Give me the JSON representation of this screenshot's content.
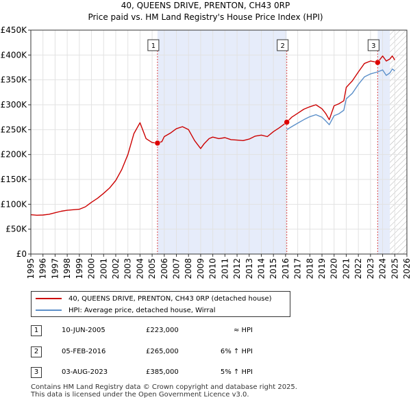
{
  "title": "40, QUEENS DRIVE, PRENTON, CH43 0RP",
  "subtitle": "Price paid vs. HM Land Registry's House Price Index (HPI)",
  "colors": {
    "property": "#cc0000",
    "hpi": "#5b8fc9",
    "shade": "#e6ecfa",
    "marker": "#dd0000"
  },
  "chart_data": {
    "type": "line",
    "title": "40, QUEENS DRIVE, PRENTON, CH43 0RP",
    "subtitle": "Price paid vs. HM Land Registry's House Price Index (HPI)",
    "xlim": [
      1995,
      2026
    ],
    "ylim": [
      0,
      450000
    ],
    "x_ticks": [
      1995,
      1996,
      1997,
      1998,
      1999,
      2000,
      2001,
      2002,
      2003,
      2004,
      2005,
      2006,
      2007,
      2008,
      2009,
      2010,
      2011,
      2012,
      2013,
      2014,
      2015,
      2016,
      2017,
      2018,
      2019,
      2020,
      2021,
      2022,
      2023,
      2024,
      2025,
      2026
    ],
    "y_ticks": [
      {
        "value": 0,
        "label": "£0"
      },
      {
        "value": 50000,
        "label": "£50K"
      },
      {
        "value": 100000,
        "label": "£100K"
      },
      {
        "value": 150000,
        "label": "£150K"
      },
      {
        "value": 200000,
        "label": "£200K"
      },
      {
        "value": 250000,
        "label": "£250K"
      },
      {
        "value": 300000,
        "label": "£300K"
      },
      {
        "value": 350000,
        "label": "£350K"
      },
      {
        "value": 400000,
        "label": "£400K"
      },
      {
        "value": 450000,
        "label": "£450K"
      }
    ],
    "shaded_ranges": [
      [
        2005.44,
        2016.1
      ],
      [
        2023.59,
        2024.6
      ]
    ],
    "hatched_range": [
      2024.6,
      2026
    ],
    "series": [
      {
        "name": "40, QUEENS DRIVE, PRENTON, CH43 0RP (detached house)",
        "x": [
          1995,
          1995.5,
          1996,
          1996.5,
          1997,
          1997.5,
          1998,
          1998.5,
          1999,
          1999.5,
          2000,
          2000.5,
          2001,
          2001.5,
          2002,
          2002.5,
          2003,
          2003.5,
          2004,
          2004.5,
          2005,
          2005.44,
          2005.8,
          2006,
          2006.5,
          2007,
          2007.5,
          2008,
          2008.5,
          2009,
          2009.3,
          2009.7,
          2010,
          2010.5,
          2011,
          2011.5,
          2012,
          2012.5,
          2013,
          2013.5,
          2014,
          2014.5,
          2015,
          2015.5,
          2016.1,
          2016.5,
          2017,
          2017.5,
          2018,
          2018.5,
          2019,
          2019.3,
          2019.6,
          2020,
          2020.4,
          2020.8,
          2021,
          2021.5,
          2022,
          2022.5,
          2023,
          2023.59,
          2024,
          2024.3,
          2024.6,
          2024.8,
          2025
        ],
        "values": [
          79000,
          78000,
          78500,
          80000,
          83000,
          86000,
          88000,
          89000,
          90000,
          95000,
          104000,
          112000,
          122000,
          133000,
          148000,
          170000,
          200000,
          242000,
          264000,
          232000,
          224000,
          223000,
          226000,
          236000,
          243000,
          252000,
          256000,
          250000,
          228000,
          212000,
          222000,
          232000,
          235000,
          232000,
          234000,
          230000,
          229000,
          228000,
          231000,
          237000,
          239000,
          236000,
          246000,
          254000,
          265000,
          275000,
          283000,
          291000,
          296000,
          300000,
          292000,
          283000,
          270000,
          298000,
          302000,
          308000,
          335000,
          348000,
          366000,
          383000,
          388000,
          385000,
          398000,
          388000,
          392000,
          398000,
          390000
        ]
      },
      {
        "name": "HPI: Average price, detached house, Wirral",
        "x": [
          2016.1,
          2016.5,
          2017,
          2017.5,
          2018,
          2018.5,
          2019,
          2019.3,
          2019.6,
          2020,
          2020.4,
          2020.8,
          2021,
          2021.5,
          2022,
          2022.5,
          2023,
          2023.59,
          2024,
          2024.3,
          2024.6,
          2024.8,
          2025
        ],
        "values": [
          250000,
          256000,
          263000,
          270000,
          276000,
          280000,
          275000,
          268000,
          260000,
          278000,
          282000,
          289000,
          312000,
          323000,
          341000,
          356000,
          362000,
          366000,
          370000,
          359000,
          364000,
          372000,
          368000
        ]
      }
    ],
    "annotations": [
      {
        "label": "1",
        "x": 2005.44,
        "value": 223000
      },
      {
        "label": "2",
        "x": 2016.1,
        "value": 265000
      },
      {
        "label": "3",
        "x": 2023.59,
        "value": 385000
      }
    ]
  },
  "legend": {
    "property_label": "40, QUEENS DRIVE, PRENTON, CH43 0RP (detached house)",
    "hpi_label": "HPI: Average price, detached house, Wirral"
  },
  "sales": [
    {
      "num": "1",
      "date": "10-JUN-2005",
      "price": "£223,000",
      "hpi": "≈ HPI"
    },
    {
      "num": "2",
      "date": "05-FEB-2016",
      "price": "£265,000",
      "hpi": "6% ↑ HPI"
    },
    {
      "num": "3",
      "date": "03-AUG-2023",
      "price": "£385,000",
      "hpi": "5% ↑ HPI"
    }
  ],
  "footer": {
    "line1": "Contains HM Land Registry data © Crown copyright and database right 2025.",
    "line2": "This data is licensed under the Open Government Licence v3.0."
  }
}
